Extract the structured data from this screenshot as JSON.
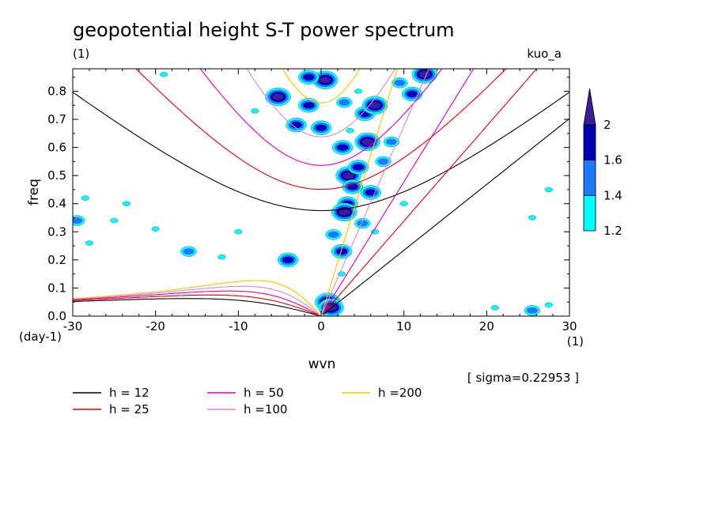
{
  "chart_data": {
    "type": "contour",
    "title": "geopotential height S-T power spectrum",
    "subtitle_left": "(1)",
    "subtitle_right": "kuo_a",
    "xlabel": "wvn",
    "ylabel": "freq",
    "x_unit": "(1)",
    "y_unit": "(day-1)",
    "xlim": [
      -30,
      30
    ],
    "ylim": [
      0,
      0.88
    ],
    "x_ticks": [
      -30,
      -20,
      -10,
      0,
      10,
      20,
      30
    ],
    "x_tick_labels": [
      "-30",
      "-20",
      "-10",
      "0",
      "10",
      "20",
      "30"
    ],
    "y_ticks": [
      0,
      0.1,
      0.2,
      0.3,
      0.4,
      0.5,
      0.6,
      0.7,
      0.8
    ],
    "y_tick_labels": [
      "0.0",
      "0.1",
      "0.2",
      "0.3",
      "0.4",
      "0.5",
      "0.6",
      "0.7",
      "0.8"
    ],
    "sigma_note": "[ sigma=0.22953 ]",
    "colorbar": {
      "levels": [
        1.2,
        1.4,
        1.6,
        2
      ],
      "labels": [
        "1.2",
        "1.4",
        "1.6",
        "2"
      ],
      "colors": [
        "#00ffff",
        "#1e78ff",
        "#0000b4",
        "#3c1e96"
      ]
    },
    "series": [
      {
        "name": "h = 12",
        "color": "#000000",
        "equivalent_depth_m": 12
      },
      {
        "name": "h = 25",
        "color": "#e60000",
        "equivalent_depth_m": 25
      },
      {
        "name": "h = 50",
        "color": "#e600b4",
        "equivalent_depth_m": 50
      },
      {
        "name": "h =100",
        "color": "#d28cd2",
        "equivalent_depth_m": 100
      },
      {
        "name": "h =200",
        "color": "#f0c800",
        "equivalent_depth_m": 200
      }
    ],
    "contour_blobs": [
      {
        "x": 0.8,
        "y": 0.05,
        "level": 2
      },
      {
        "x": 1.2,
        "y": 0.03,
        "level": 2
      },
      {
        "x": 2.5,
        "y": 0.23,
        "level": 1.6
      },
      {
        "x": 1.5,
        "y": 0.29,
        "level": 1.4
      },
      {
        "x": -4,
        "y": 0.2,
        "level": 1.6
      },
      {
        "x": 3.2,
        "y": 0.4,
        "level": 1.6
      },
      {
        "x": 2.8,
        "y": 0.37,
        "level": 2
      },
      {
        "x": 3.3,
        "y": 0.5,
        "level": 2
      },
      {
        "x": 3.8,
        "y": 0.46,
        "level": 1.6
      },
      {
        "x": 2.6,
        "y": 0.6,
        "level": 1.6
      },
      {
        "x": 5.6,
        "y": 0.62,
        "level": 2
      },
      {
        "x": 4.5,
        "y": 0.53,
        "level": 1.6
      },
      {
        "x": 5.3,
        "y": 0.72,
        "level": 1.6
      },
      {
        "x": 6.5,
        "y": 0.75,
        "level": 2
      },
      {
        "x": 0,
        "y": 0.67,
        "level": 1.6
      },
      {
        "x": -3,
        "y": 0.68,
        "level": 1.6
      },
      {
        "x": -5.2,
        "y": 0.78,
        "level": 2
      },
      {
        "x": -1.5,
        "y": 0.75,
        "level": 1.6
      },
      {
        "x": 0.5,
        "y": 0.84,
        "level": 2
      },
      {
        "x": -1.5,
        "y": 0.85,
        "level": 1.6
      },
      {
        "x": 2.8,
        "y": 0.76,
        "level": 1.4
      },
      {
        "x": 11,
        "y": 0.79,
        "level": 1.6
      },
      {
        "x": 12.5,
        "y": 0.86,
        "level": 2
      },
      {
        "x": 9.5,
        "y": 0.83,
        "level": 1.4
      },
      {
        "x": 8.5,
        "y": 0.62,
        "level": 1.4
      },
      {
        "x": 7.5,
        "y": 0.55,
        "level": 1.4
      },
      {
        "x": 6,
        "y": 0.44,
        "level": 1.6
      },
      {
        "x": 5,
        "y": 0.33,
        "level": 1.4
      },
      {
        "x": 6.5,
        "y": 0.3,
        "level": 1.2
      },
      {
        "x": 2.5,
        "y": 0.15,
        "level": 1.2
      },
      {
        "x": -12,
        "y": 0.21,
        "level": 1.2
      },
      {
        "x": -16,
        "y": 0.23,
        "level": 1.4
      },
      {
        "x": -20,
        "y": 0.31,
        "level": 1.2
      },
      {
        "x": -23.5,
        "y": 0.4,
        "level": 1.2
      },
      {
        "x": -25,
        "y": 0.34,
        "level": 1.2
      },
      {
        "x": -28.5,
        "y": 0.42,
        "level": 1.2
      },
      {
        "x": -29.5,
        "y": 0.34,
        "level": 1.4
      },
      {
        "x": -28,
        "y": 0.26,
        "level": 1.2
      },
      {
        "x": -10,
        "y": 0.3,
        "level": 1.2
      },
      {
        "x": -19,
        "y": 0.86,
        "level": 1.2
      },
      {
        "x": 4.5,
        "y": 0.8,
        "level": 1.2
      },
      {
        "x": 10,
        "y": 0.4,
        "level": 1.2
      },
      {
        "x": 27.5,
        "y": 0.04,
        "level": 1.2
      },
      {
        "x": 25.5,
        "y": 0.02,
        "level": 1.4
      },
      {
        "x": 21,
        "y": 0.03,
        "level": 1.2
      },
      {
        "x": 27.5,
        "y": 0.45,
        "level": 1.2
      },
      {
        "x": 25.5,
        "y": 0.35,
        "level": 1.2
      },
      {
        "x": 3.5,
        "y": 0.66,
        "level": 1.2
      },
      {
        "x": -8,
        "y": 0.73,
        "level": 1.2
      }
    ]
  }
}
